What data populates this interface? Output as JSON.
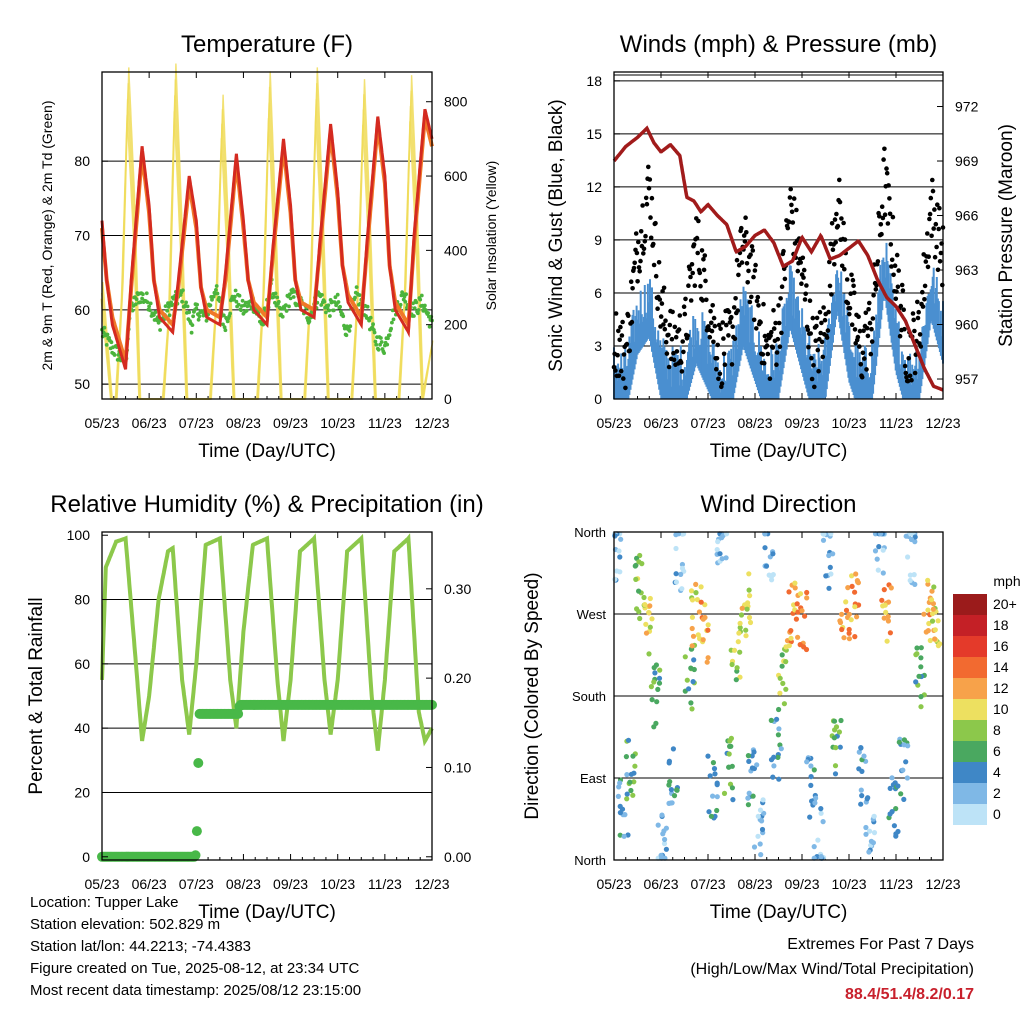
{
  "chart_data": [
    {
      "type": "line",
      "title": "Temperature (F)",
      "xlabel": "Time (Day/UTC)",
      "ylabel": "2m & 9m T (Red, Orange) & 2m Td (Green)",
      "y2label": "Solar Insolation (Yellow)",
      "x_ticks": [
        "05/23",
        "06/23",
        "07/23",
        "08/23",
        "09/23",
        "10/23",
        "11/23",
        "12/23"
      ],
      "x_range": [
        0,
        7
      ],
      "ylim": [
        48,
        92
      ],
      "y_ticks": [
        50,
        60,
        70,
        80
      ],
      "y2lim": [
        0,
        880
      ],
      "y2_ticks": [
        0,
        200,
        400,
        600,
        800
      ],
      "gridlines": [
        50,
        60,
        70,
        80
      ],
      "colors": {
        "t2m": "#d42a20",
        "t9m": "#f07828",
        "td2m": "#4bb43c",
        "solar": "#f0dc5a"
      },
      "series": [
        {
          "name": "2m T",
          "axis": "left",
          "x": [
            0,
            0.1,
            0.22,
            0.5,
            0.62,
            0.85,
            1,
            1.1,
            1.22,
            1.5,
            1.62,
            1.85,
            2,
            2.1,
            2.22,
            2.5,
            2.62,
            2.85,
            3,
            3.1,
            3.22,
            3.5,
            3.62,
            3.85,
            4,
            4.1,
            4.22,
            4.5,
            4.62,
            4.85,
            5,
            5.1,
            5.22,
            5.5,
            5.62,
            5.85,
            6,
            6.1,
            6.22,
            6.5,
            6.62,
            6.85,
            7
          ],
          "values": [
            72,
            64,
            58,
            52,
            64,
            82,
            74,
            64,
            59,
            57,
            64,
            78,
            72,
            63,
            59,
            58,
            65,
            81,
            72,
            64,
            60,
            58,
            68,
            83,
            74,
            64,
            60,
            59,
            69,
            85,
            76,
            66,
            61,
            58,
            69,
            86,
            78,
            66,
            60,
            57,
            70,
            87,
            83
          ]
        },
        {
          "name": "9m T",
          "axis": "left",
          "x": [
            0,
            0.1,
            0.22,
            0.5,
            0.62,
            0.85,
            1,
            1.1,
            1.22,
            1.5,
            1.62,
            1.85,
            2,
            2.1,
            2.22,
            2.5,
            2.62,
            2.85,
            3,
            3.1,
            3.22,
            3.5,
            3.62,
            3.85,
            4,
            4.1,
            4.22,
            4.5,
            4.62,
            4.85,
            5,
            5.1,
            5.22,
            5.5,
            5.62,
            5.85,
            6,
            6.1,
            6.22,
            6.5,
            6.62,
            6.85,
            7
          ],
          "values": [
            71,
            64,
            59,
            53,
            63,
            81,
            73,
            64,
            60,
            58,
            63,
            77,
            71,
            63,
            60,
            59,
            64,
            80,
            71,
            64,
            61,
            59,
            67,
            82,
            73,
            64,
            61,
            60,
            68,
            84,
            75,
            66,
            62,
            59,
            68,
            85,
            77,
            66,
            61,
            58,
            69,
            86,
            82
          ]
        },
        {
          "name": "2m Td",
          "axis": "left",
          "x": [
            0,
            0.2,
            0.5,
            0.6,
            0.8,
            1,
            1.2,
            1.5,
            1.7,
            1.9,
            2,
            2.2,
            2.4,
            2.6,
            2.8,
            3,
            3.2,
            3.4,
            3.6,
            3.8,
            4,
            4.2,
            4.4,
            4.6,
            4.8,
            5,
            5.2,
            5.4,
            5.6,
            5.8,
            6,
            6.2,
            6.4,
            6.6,
            6.8,
            7
          ],
          "values": [
            57,
            55,
            53,
            60,
            62,
            61,
            58,
            61,
            62,
            58,
            60,
            59,
            63,
            58,
            62,
            60,
            61,
            58,
            63,
            59,
            62,
            61,
            59,
            62,
            60,
            61,
            57,
            62,
            60,
            56,
            55,
            60,
            62,
            60,
            61,
            58
          ]
        },
        {
          "name": "Solar Insolation",
          "axis": "right",
          "x": [
            0,
            0.2,
            0.3,
            0.43,
            0.55,
            0.68,
            0.8,
            1.2,
            1.3,
            1.43,
            1.55,
            1.68,
            1.8,
            2.2,
            2.3,
            2.43,
            2.55,
            2.68,
            2.8,
            3.2,
            3.3,
            3.43,
            3.55,
            3.68,
            3.8,
            4.2,
            4.3,
            4.43,
            4.55,
            4.68,
            4.8,
            5.2,
            5.3,
            5.43,
            5.55,
            5.68,
            5.8,
            6.2,
            6.3,
            6.43,
            6.55,
            6.68,
            6.8,
            7
          ],
          "values": [
            300,
            0,
            0,
            300,
            850,
            500,
            0,
            0,
            0,
            250,
            860,
            450,
            0,
            0,
            0,
            280,
            780,
            400,
            0,
            0,
            0,
            300,
            840,
            420,
            0,
            0,
            0,
            310,
            850,
            450,
            0,
            0,
            0,
            300,
            820,
            430,
            0,
            0,
            0,
            300,
            830,
            450,
            0,
            150
          ]
        }
      ]
    },
    {
      "type": "scatter",
      "title": "Winds (mph) & Pressure (mb)",
      "xlabel": "Time (Day/UTC)",
      "ylabel": "Sonic Wind & Gust (Blue, Black)",
      "y2label": "Station Pressure (Maroon)",
      "x_ticks": [
        "05/23",
        "06/23",
        "07/23",
        "08/23",
        "09/23",
        "10/23",
        "11/23",
        "12/23"
      ],
      "x_range": [
        0,
        7
      ],
      "ylim": [
        0,
        18.5
      ],
      "y_ticks": [
        0,
        3,
        6,
        9,
        12,
        15,
        18
      ],
      "y2lim": [
        955.9,
        973.9
      ],
      "y2_ticks": [
        957,
        960,
        963,
        966,
        969,
        972
      ],
      "gridlines": [
        3,
        6,
        9,
        12,
        15,
        18
      ],
      "colors": {
        "wind": "#4a8fd0",
        "gust": "#000000",
        "pressure": "#a11b1b"
      },
      "series": [
        {
          "name": "Wind",
          "axis": "left",
          "x": [
            0,
            0.25,
            0.5,
            0.75,
            1,
            1.25,
            1.5,
            1.75,
            2,
            2.25,
            2.5,
            2.75,
            3,
            3.25,
            3.5,
            3.75,
            4,
            4.25,
            4.5,
            4.75,
            5,
            5.25,
            5.5,
            5.75,
            6,
            6.25,
            6.5,
            6.75,
            7
          ],
          "values": [
            1.5,
            1.2,
            4.5,
            5.5,
            2,
            1.3,
            1.5,
            4,
            2.5,
            1,
            1.5,
            5,
            3,
            1,
            2,
            6,
            3.5,
            1,
            2,
            7,
            3,
            1,
            2,
            8,
            3.5,
            1,
            2,
            6.5,
            4
          ]
        },
        {
          "name": "Gust",
          "axis": "left",
          "x": [
            0,
            0.25,
            0.5,
            0.75,
            1,
            1.25,
            1.5,
            1.75,
            2,
            2.25,
            2.5,
            2.75,
            3,
            3.25,
            3.5,
            3.75,
            4,
            4.25,
            4.5,
            4.75,
            5,
            5.25,
            5.5,
            5.75,
            6,
            6.25,
            6.5,
            6.75,
            7
          ],
          "values": [
            3.5,
            2.5,
            8.5,
            12,
            5,
            3,
            3.5,
            9,
            5.5,
            2.5,
            3.5,
            9,
            6,
            2.5,
            4,
            11,
            7,
            2.5,
            4,
            11.5,
            6,
            2.5,
            4.5,
            12.5,
            7,
            2.5,
            4,
            11,
            8
          ]
        },
        {
          "name": "Station Pressure",
          "axis": "right",
          "x": [
            0,
            0.25,
            0.5,
            0.7,
            0.85,
            1,
            1.2,
            1.4,
            1.55,
            1.7,
            1.85,
            2,
            2.2,
            2.4,
            2.6,
            2.8,
            3,
            3.2,
            3.4,
            3.6,
            3.8,
            4,
            4.2,
            4.4,
            4.6,
            4.8,
            5,
            5.2,
            5.4,
            5.6,
            5.8,
            6,
            6.2,
            6.4,
            6.6,
            6.8,
            7
          ],
          "values": [
            969,
            969.8,
            970.3,
            970.8,
            970,
            969.5,
            969.9,
            969.3,
            967,
            966.8,
            966.2,
            966.6,
            966,
            965.5,
            964,
            964.3,
            964.9,
            965.2,
            964.5,
            963.2,
            963.5,
            964.8,
            964,
            964.9,
            963.6,
            963.8,
            964.2,
            964.6,
            963.8,
            962.5,
            961.5,
            961,
            960.2,
            958.9,
            957.6,
            956.6,
            956.4
          ]
        }
      ]
    },
    {
      "type": "line",
      "title": "Relative Humidity (%) & Precipitation (in)",
      "xlabel": "Time (Day/UTC)",
      "ylabel": "Percent & Total Rainfall",
      "x_ticks": [
        "05/23",
        "06/23",
        "07/23",
        "08/23",
        "09/23",
        "10/23",
        "11/23",
        "12/23"
      ],
      "x_range": [
        0,
        7
      ],
      "ylim": [
        -1,
        101
      ],
      "y_ticks": [
        0,
        20,
        40,
        60,
        80,
        100
      ],
      "y2lim": [
        -0.0036,
        0.3636
      ],
      "y2_ticks": [
        "0.00",
        "0.10",
        "0.20",
        "0.30"
      ],
      "gridlines": [
        20,
        40,
        60,
        80
      ],
      "colors": {
        "rh": "#8cc84b",
        "precip": "#48b848"
      },
      "series": [
        {
          "name": "Relative Humidity",
          "axis": "left",
          "x": [
            0,
            0.08,
            0.3,
            0.5,
            0.72,
            0.85,
            1,
            1.2,
            1.4,
            1.5,
            1.7,
            1.85,
            2,
            2.2,
            2.5,
            2.72,
            2.85,
            3,
            3.2,
            3.5,
            3.72,
            3.85,
            4,
            4.2,
            4.5,
            4.72,
            4.85,
            5,
            5.2,
            5.5,
            5.72,
            5.85,
            6,
            6.2,
            6.5,
            6.72,
            6.85,
            7
          ],
          "values": [
            55,
            90,
            98,
            99,
            60,
            36,
            50,
            80,
            95,
            96,
            55,
            38,
            60,
            97,
            99,
            55,
            40,
            70,
            97,
            99,
            55,
            36,
            55,
            95,
            99,
            55,
            38,
            55,
            95,
            99,
            50,
            33,
            55,
            95,
            99,
            45,
            36,
            40
          ]
        },
        {
          "name": "Total Precipitation",
          "axis": "right",
          "x": [
            0,
            1.98,
            2.0,
            2.02,
            2.04,
            2.06,
            2.5,
            2.9,
            2.92,
            7
          ],
          "values": [
            0,
            0,
            0.01,
            0.04,
            0.1,
            0.16,
            0.16,
            0.16,
            0.17,
            0.17
          ]
        }
      ]
    },
    {
      "type": "scatter",
      "title": "Wind Direction",
      "xlabel": "Time (Day/UTC)",
      "ylabel": "Direction (Colored By Speed)",
      "x_ticks": [
        "05/23",
        "06/23",
        "07/23",
        "08/23",
        "09/23",
        "10/23",
        "11/23",
        "12/23"
      ],
      "x_range": [
        0,
        7
      ],
      "y_ticks": [
        "North",
        "East",
        "South",
        "West",
        "North"
      ],
      "y_range_deg": [
        0,
        360
      ],
      "gridlines": [
        "East",
        "South",
        "West"
      ],
      "legend": {
        "title": "mph",
        "placement": "right",
        "labels": [
          "20+",
          "18",
          "16",
          "14",
          "12",
          "10",
          "8",
          "6",
          "4",
          "2",
          "0"
        ],
        "colors": [
          "#9b1b1b",
          "#c42026",
          "#e43a2a",
          "#f26a30",
          "#f7a24a",
          "#ede060",
          "#8cc84b",
          "#4aa860",
          "#3f87c6",
          "#7fb8e6",
          "#bde3f7"
        ]
      },
      "series": [
        {
          "name": "Direction",
          "x": [
            0.05,
            0.2,
            0.35,
            0.55,
            0.7,
            0.9,
            1.05,
            1.25,
            1.4,
            1.6,
            1.75,
            1.9,
            2.1,
            2.3,
            2.45,
            2.6,
            2.8,
            2.95,
            3.1,
            3.3,
            3.45,
            3.6,
            3.8,
            4.0,
            4.2,
            4.35,
            4.55,
            4.75,
            4.9,
            5.1,
            5.3,
            5.45,
            5.65,
            5.8,
            5.95,
            6.15,
            6.3,
            6.5,
            6.7,
            6.85
          ],
          "values": [
            340,
            60,
            100,
            300,
            260,
            180,
            20,
            90,
            330,
            200,
            270,
            250,
            80,
            350,
            100,
            230,
            280,
            90,
            40,
            340,
            120,
            200,
            270,
            265,
            80,
            30,
            330,
            120,
            270,
            280,
            90,
            20,
            340,
            270,
            60,
            100,
            330,
            200,
            275,
            270
          ],
          "speeds": [
            1,
            2,
            3,
            4,
            5,
            3,
            1,
            2,
            1,
            3,
            5,
            6,
            2,
            1,
            3,
            4,
            5,
            2,
            1,
            1,
            2,
            4,
            6,
            6,
            2,
            1,
            1,
            3,
            6,
            6,
            2,
            1,
            1,
            6,
            2,
            2,
            1,
            3,
            6,
            5
          ]
        }
      ]
    }
  ],
  "info": {
    "location": "Location: Tupper Lake",
    "elevation": "Station elevation: 502.829 m",
    "latlon": "Station lat/lon: 44.2213; -74.4383",
    "created": "Figure created on Tue, 2025-08-12, at 23:34 UTC",
    "recent": "Most recent data timestamp: 2025/08/12 23:15:00"
  },
  "extremes": {
    "title": "Extremes For Past 7 Days",
    "subtitle": "(High/Low/Max Wind/Total Precipitation)",
    "values": "88.4/51.4/8.2/0.17"
  }
}
